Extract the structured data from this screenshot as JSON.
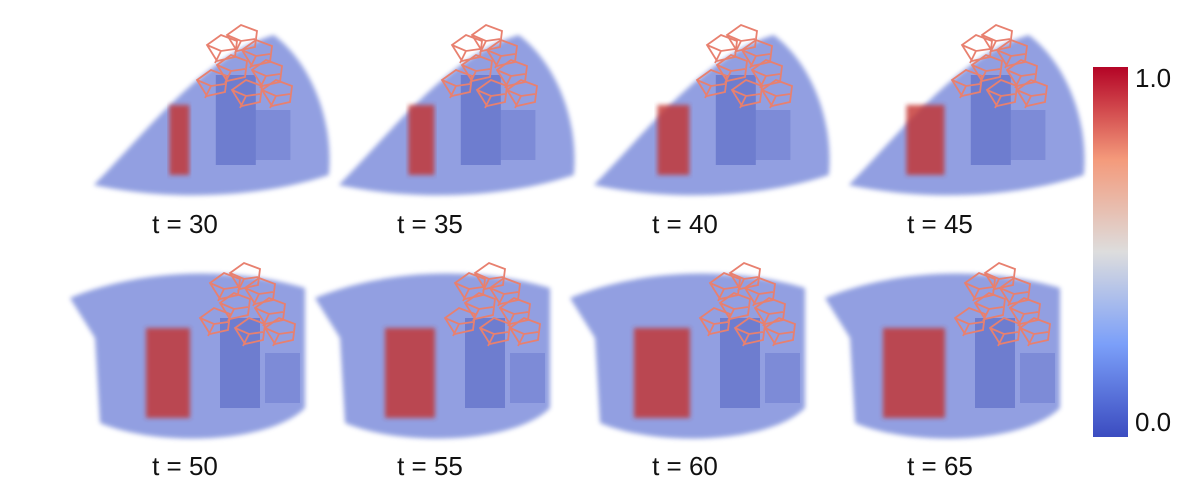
{
  "panels": [
    {
      "label": "t = 30"
    },
    {
      "label": "t = 35"
    },
    {
      "label": "t = 40"
    },
    {
      "label": "t = 45"
    },
    {
      "label": "t = 50"
    },
    {
      "label": "t = 55"
    },
    {
      "label": "t = 60"
    },
    {
      "label": "t = 65"
    }
  ],
  "colorbar": {
    "top_label": "1.0",
    "bottom_label": "0.0"
  }
}
